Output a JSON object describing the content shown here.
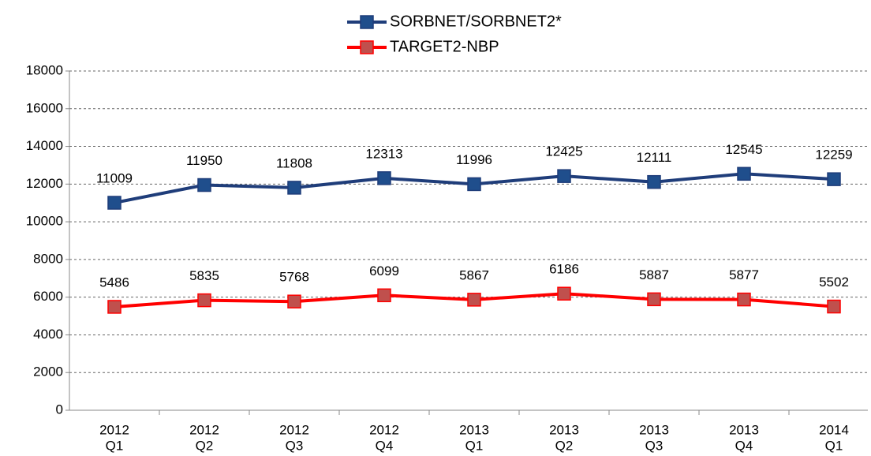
{
  "chart_data": {
    "type": "line",
    "categories": [
      [
        "2012",
        "Q1"
      ],
      [
        "2012",
        "Q2"
      ],
      [
        "2012",
        "Q3"
      ],
      [
        "2012",
        "Q4"
      ],
      [
        "2013",
        "Q1"
      ],
      [
        "2013",
        "Q2"
      ],
      [
        "2013",
        "Q3"
      ],
      [
        "2013",
        "Q4"
      ],
      [
        "2014",
        "Q1"
      ]
    ],
    "series": [
      {
        "name": "SORBNET/SORBNET2*",
        "color": "#1f3d7a",
        "marker_color": "#1f4e8c",
        "values": [
          11009,
          11950,
          11808,
          12313,
          11996,
          12425,
          12111,
          12545,
          12259
        ]
      },
      {
        "name": "TARGET2-NBP",
        "color": "#ff0000",
        "marker_color": "#c0504d",
        "values": [
          5486,
          5835,
          5768,
          6099,
          5867,
          6186,
          5887,
          5877,
          5502
        ]
      }
    ],
    "ylim": [
      0,
      18000
    ],
    "yticks": [
      0,
      2000,
      4000,
      6000,
      8000,
      10000,
      12000,
      14000,
      16000,
      18000
    ],
    "grid": true,
    "legend": "top"
  }
}
